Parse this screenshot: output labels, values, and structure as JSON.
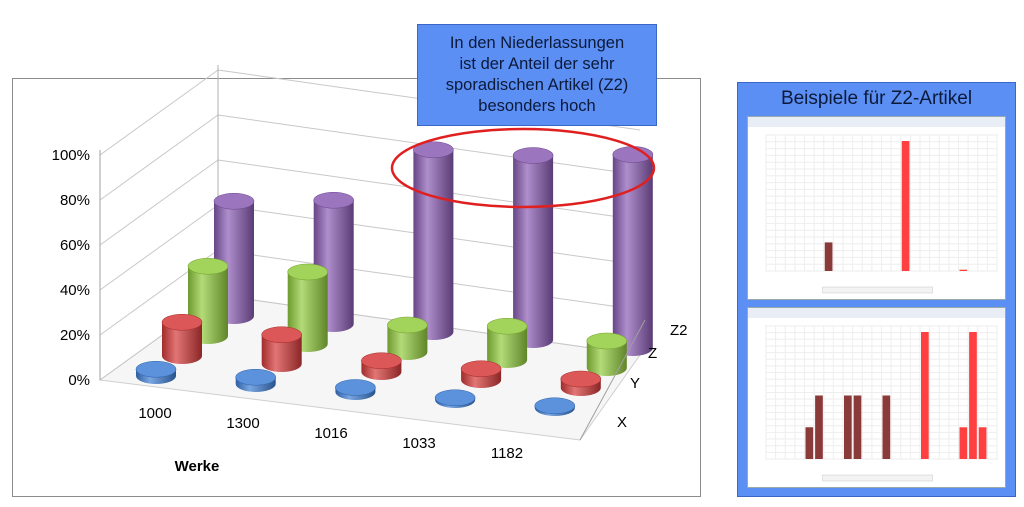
{
  "callout": {
    "lines": [
      "In den Niederlassungen",
      "ist der Anteil der sehr",
      "sporadischen Artikel (Z2)",
      "besonders hoch"
    ]
  },
  "side_panel": {
    "title": "Beispiele für Z2-Artikel"
  },
  "chart_data": [
    {
      "type": "bar",
      "style": "3d-cylinder",
      "categories": [
        "1000",
        "1300",
        "1016",
        "1033",
        "1182"
      ],
      "xlabel": "Werke",
      "ylabel": "",
      "ylim": [
        0,
        1
      ],
      "y_tick_labels": [
        "0%",
        "20%",
        "40%",
        "60%",
        "80%",
        "100%"
      ],
      "depth_axis": [
        "X",
        "Y",
        "Z",
        "Z2"
      ],
      "series": [
        {
          "name": "X",
          "color": "#3f7fd6",
          "values": [
            0.03,
            0.03,
            0.02,
            0.01,
            0.01
          ]
        },
        {
          "name": "Y",
          "color": "#d63a3a",
          "values": [
            0.15,
            0.13,
            0.05,
            0.05,
            0.04
          ]
        },
        {
          "name": "Z",
          "color": "#92cc3e",
          "values": [
            0.31,
            0.32,
            0.12,
            0.15,
            0.12
          ]
        },
        {
          "name": "Z2",
          "color": "#8b5db4",
          "values": [
            0.51,
            0.55,
            0.81,
            0.82,
            0.86
          ]
        }
      ],
      "highlight": "ellipse around Z2 of 1016, 1033, 1182",
      "grid": true
    },
    {
      "type": "bar",
      "title": "",
      "colors": [
        "#8b3a3a",
        "#ff4040"
      ],
      "bars": [
        {
          "slot": 6,
          "value": 0.22,
          "kind": "dark"
        },
        {
          "slot": 14,
          "value": 1.0,
          "kind": "red"
        },
        {
          "slot": 20,
          "value": 0.01,
          "kind": "red"
        }
      ]
    },
    {
      "type": "bar",
      "title": "",
      "colors": [
        "#8b3a3a",
        "#ff4040"
      ],
      "bars": [
        {
          "slot": 4,
          "value": 0.25,
          "kind": "dark"
        },
        {
          "slot": 5,
          "value": 0.5,
          "kind": "dark"
        },
        {
          "slot": 8,
          "value": 0.5,
          "kind": "dark"
        },
        {
          "slot": 9,
          "value": 0.5,
          "kind": "dark"
        },
        {
          "slot": 12,
          "value": 0.5,
          "kind": "dark"
        },
        {
          "slot": 16,
          "value": 1.0,
          "kind": "red"
        },
        {
          "slot": 20,
          "value": 0.25,
          "kind": "red"
        },
        {
          "slot": 21,
          "value": 1.0,
          "kind": "red"
        },
        {
          "slot": 22,
          "value": 0.25,
          "kind": "red"
        }
      ]
    }
  ]
}
